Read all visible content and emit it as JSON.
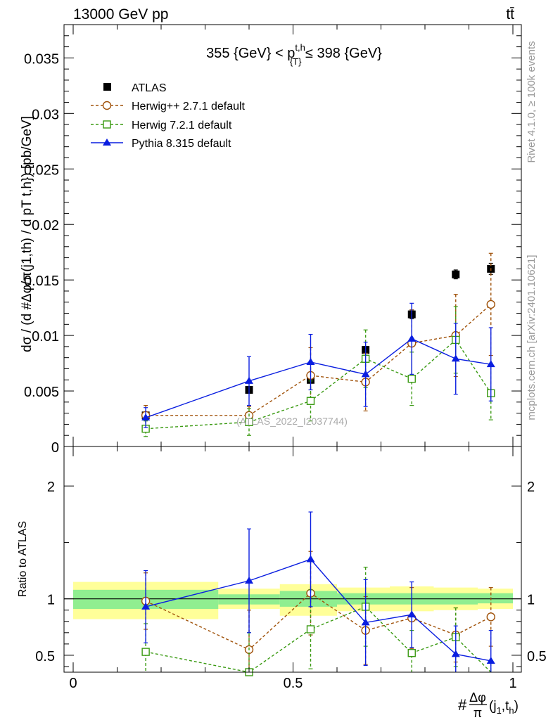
{
  "header": {
    "left_label": "13000 GeV pp",
    "right_label": "tt̄"
  },
  "side_labels": {
    "rivet": "Rivet 4.1.0, ≥ 100k events",
    "mcplots": "mcplots.cern.ch [arXiv:2401.10621]"
  },
  "colors": {
    "atlas": "#000000",
    "herwigpp": "#a0520a",
    "herwig7": "#3a9a12",
    "pythia": "#0a1ee0",
    "band_inner": "#90ee90",
    "band_outer": "#ffff99"
  },
  "chart_data": [
    {
      "type": "scatter",
      "panel": "main",
      "title_parts": {
        "pre": "355 {GeV} < p",
        "sup": "t,h",
        "sub": "{T}",
        "post": " ≤ 398 {GeV}"
      },
      "ylabel": "dσ / (d #Δφ/π(j1,th) / d pT t,h}) [pb/GeV]",
      "watermark": "(ATLAS_2022_I2037744)",
      "xlim": [
        0,
        1
      ],
      "ylim": [
        0,
        0.038
      ],
      "yticks": [
        0,
        0.005,
        0.01,
        0.015,
        0.02,
        0.025,
        0.03,
        0.035
      ],
      "ytick_labels": [
        "0",
        "0.005",
        "0.01",
        "0.015",
        "0.02",
        "0.025",
        "0.03",
        "0.035"
      ],
      "series": [
        {
          "name": "ATLAS",
          "legend": "ATLAS",
          "key": "atlas",
          "marker": "square-filled",
          "line": "none",
          "x": [
            0.165,
            0.4,
            0.54,
            0.665,
            0.77,
            0.87,
            0.95
          ],
          "y": [
            0.0028,
            0.0051,
            0.006,
            0.0087,
            0.0119,
            0.0155,
            0.016
          ],
          "yerr": [
            0.0002,
            0.0003,
            0.0003,
            0.0003,
            0.0004,
            0.0004,
            0.0005
          ]
        },
        {
          "name": "Herwig++ 2.7.1 default",
          "legend": "Herwig++ 2.7.1 default",
          "key": "herwigpp",
          "marker": "circle-open",
          "line": "dashed",
          "x": [
            0.165,
            0.4,
            0.54,
            0.665,
            0.77,
            0.87,
            0.95
          ],
          "y": [
            0.0028,
            0.0028,
            0.0064,
            0.0058,
            0.0093,
            0.01,
            0.0128
          ],
          "yerr": [
            0.0009,
            0.0008,
            0.0025,
            0.0026,
            0.003,
            0.0037,
            0.0046
          ]
        },
        {
          "name": "Herwig 7.2.1 default",
          "legend": "Herwig 7.2.1 default",
          "key": "herwig7",
          "marker": "square-open",
          "line": "dashed",
          "x": [
            0.165,
            0.4,
            0.54,
            0.665,
            0.77,
            0.87,
            0.95
          ],
          "y": [
            0.0016,
            0.0022,
            0.0041,
            0.0079,
            0.0061,
            0.0096,
            0.0048
          ],
          "yerr": [
            0.0007,
            0.0012,
            0.0018,
            0.0026,
            0.0024,
            0.003,
            0.0024
          ]
        },
        {
          "name": "Pythia 8.315 default",
          "legend": "Pythia 8.315 default",
          "key": "pythia",
          "marker": "triangle-filled",
          "line": "solid",
          "x": [
            0.165,
            0.4,
            0.54,
            0.665,
            0.77,
            0.87,
            0.95
          ],
          "y": [
            0.0026,
            0.0059,
            0.0076,
            0.0065,
            0.0097,
            0.0079,
            0.0074
          ],
          "yerr": [
            0.0009,
            0.0022,
            0.0025,
            0.0029,
            0.0032,
            0.0032,
            0.0033
          ]
        }
      ]
    },
    {
      "type": "scatter",
      "panel": "ratio",
      "ylabel": "Ratio to ATLAS",
      "xlabel_parts": {
        "prefix": "#",
        "num": "Δφ",
        "den": "π",
        "arg": "(j",
        "arg_sub1": "1",
        "arg_mid": ",t",
        "arg_sub2": "h",
        "arg_end": ")"
      },
      "xlim": [
        0,
        1
      ],
      "ylim": [
        0.35,
        2.35
      ],
      "xticks": [
        0,
        0.5,
        1
      ],
      "xtick_labels": [
        "0",
        "0.5",
        "1"
      ],
      "yticks": [
        0.5,
        1,
        2
      ],
      "ytick_labels": [
        "0.5",
        "1",
        "2"
      ],
      "bands": [
        {
          "x0": 0.0,
          "x1": 0.33,
          "inner": [
            0.91,
            1.08
          ],
          "outer": [
            0.82,
            1.15
          ]
        },
        {
          "x0": 0.33,
          "x1": 0.47,
          "inner": [
            0.95,
            1.04
          ],
          "outer": [
            0.91,
            1.09
          ]
        },
        {
          "x0": 0.47,
          "x1": 0.6,
          "inner": [
            0.93,
            1.07
          ],
          "outer": [
            0.85,
            1.13
          ]
        },
        {
          "x0": 0.6,
          "x1": 0.72,
          "inner": [
            0.95,
            1.05
          ],
          "outer": [
            0.89,
            1.1
          ]
        },
        {
          "x0": 0.72,
          "x1": 0.82,
          "inner": [
            0.95,
            1.05
          ],
          "outer": [
            0.89,
            1.11
          ]
        },
        {
          "x0": 0.82,
          "x1": 0.92,
          "inner": [
            0.95,
            1.05
          ],
          "outer": [
            0.9,
            1.1
          ]
        },
        {
          "x0": 0.92,
          "x1": 1.0,
          "inner": [
            0.96,
            1.05
          ],
          "outer": [
            0.91,
            1.09
          ]
        }
      ],
      "series": [
        {
          "name": "Herwig++ 2.7.1 default",
          "key": "herwigpp",
          "marker": "circle-open",
          "line": "dashed",
          "x": [
            0.165,
            0.4,
            0.54,
            0.665,
            0.77,
            0.87,
            0.95
          ],
          "y": [
            0.98,
            0.55,
            1.05,
            0.72,
            0.83,
            0.68,
            0.84
          ],
          "yerr": [
            0.25,
            0.35,
            0.37,
            0.3,
            0.27,
            0.24,
            0.26
          ]
        },
        {
          "name": "Herwig 7.2.1 default",
          "key": "herwig7",
          "marker": "square-open",
          "line": "dashed",
          "x": [
            0.165,
            0.4,
            0.54,
            0.665,
            0.77,
            0.87,
            0.95
          ],
          "y": [
            0.53,
            0.35,
            0.73,
            0.93,
            0.52,
            0.66,
            0.28
          ],
          "yerr": [
            0.25,
            0.35,
            0.35,
            0.35,
            0.2,
            0.26,
            0.15
          ]
        },
        {
          "name": "Pythia 8.315 default",
          "key": "pythia",
          "marker": "triangle-filled",
          "line": "solid",
          "x": [
            0.165,
            0.4,
            0.54,
            0.665,
            0.77,
            0.87,
            0.95
          ],
          "y": [
            0.93,
            1.16,
            1.35,
            0.79,
            0.86,
            0.51,
            0.45
          ],
          "yerr": [
            0.32,
            0.46,
            0.42,
            0.38,
            0.29,
            0.25,
            0.27
          ]
        }
      ]
    }
  ]
}
